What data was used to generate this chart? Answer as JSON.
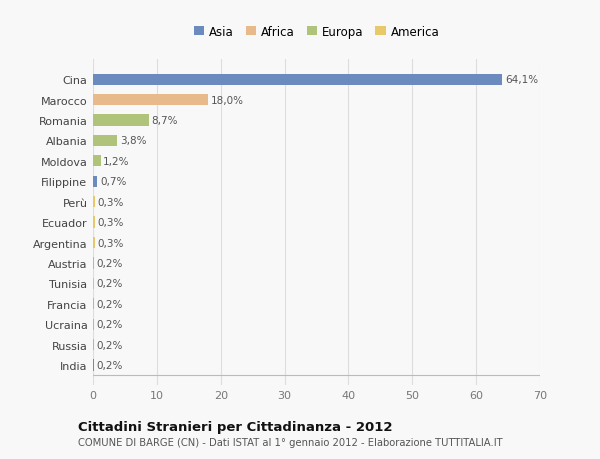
{
  "categories": [
    "Cina",
    "Marocco",
    "Romania",
    "Albania",
    "Moldova",
    "Filippine",
    "Perù",
    "Ecuador",
    "Argentina",
    "Austria",
    "Tunisia",
    "Francia",
    "Ucraina",
    "Russia",
    "India"
  ],
  "values": [
    64.1,
    18.0,
    8.7,
    3.8,
    1.2,
    0.7,
    0.3,
    0.3,
    0.3,
    0.2,
    0.2,
    0.2,
    0.2,
    0.2,
    0.2
  ],
  "labels": [
    "64,1%",
    "18,0%",
    "8,7%",
    "3,8%",
    "1,2%",
    "0,7%",
    "0,3%",
    "0,3%",
    "0,3%",
    "0,2%",
    "0,2%",
    "0,2%",
    "0,2%",
    "0,2%",
    "0,2%"
  ],
  "continent": [
    "Asia",
    "Africa",
    "Europa",
    "Europa",
    "Europa",
    "Asia",
    "America",
    "America",
    "America",
    "Europa",
    "Africa",
    "Europa",
    "Europa",
    "Europa",
    "Asia"
  ],
  "legend_labels": [
    "Asia",
    "Africa",
    "Europa",
    "America"
  ],
  "legend_colors": [
    "#6b8bbf",
    "#e8b98a",
    "#afc47a",
    "#e8c96a"
  ],
  "title": "Cittadini Stranieri per Cittadinanza - 2012",
  "subtitle": "COMUNE DI BARGE (CN) - Dati ISTAT al 1° gennaio 2012 - Elaborazione TUTTITALIA.IT",
  "xlim": [
    0,
    70
  ],
  "xticks": [
    0,
    10,
    20,
    30,
    40,
    50,
    60,
    70
  ],
  "background_color": "#f8f8f8",
  "grid_color": "#dddddd"
}
